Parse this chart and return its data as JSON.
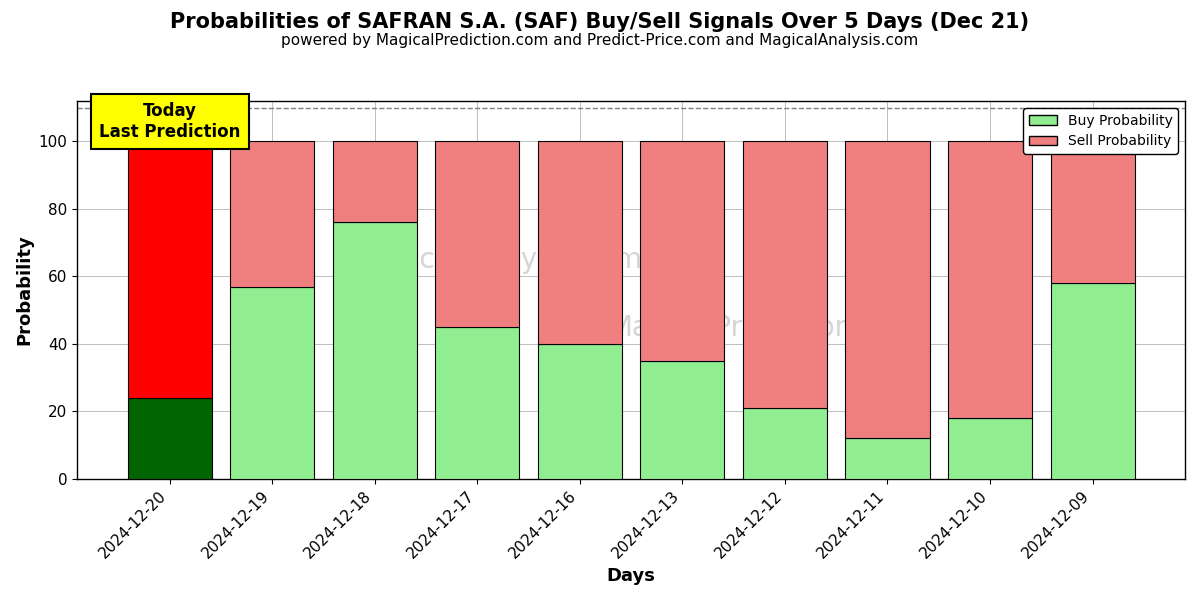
{
  "title": "Probabilities of SAFRAN S.A. (SAF) Buy/Sell Signals Over 5 Days (Dec 21)",
  "subtitle": "powered by MagicalPrediction.com and Predict-Price.com and MagicalAnalysis.com",
  "xlabel": "Days",
  "ylabel": "Probability",
  "categories": [
    "2024-12-20",
    "2024-12-19",
    "2024-12-18",
    "2024-12-17",
    "2024-12-16",
    "2024-12-13",
    "2024-12-12",
    "2024-12-11",
    "2024-12-10",
    "2024-12-09"
  ],
  "buy_values": [
    24,
    57,
    76,
    45,
    40,
    35,
    21,
    12,
    18,
    58
  ],
  "sell_values": [
    76,
    43,
    24,
    55,
    60,
    65,
    79,
    88,
    82,
    42
  ],
  "buy_color_today": "#006400",
  "sell_color_today": "#ff0000",
  "buy_color_rest": "#90ee90",
  "sell_color_rest": "#f08080",
  "bar_edge_color": "#000000",
  "ylim": [
    0,
    112
  ],
  "yticks": [
    0,
    20,
    40,
    60,
    80,
    100
  ],
  "dashed_line_y": 110,
  "legend_buy_label": "Buy Probability",
  "legend_sell_label": "Sell Probability",
  "today_label_line1": "Today",
  "today_label_line2": "Last Prediction",
  "today_box_facecolor": "#ffff00",
  "today_box_edgecolor": "#000000",
  "watermark_row1": "MagicalAnalysis.com",
  "watermark_row2": "MagicalPrediction.com",
  "watermark_color": "#d0d0d0",
  "title_fontsize": 15,
  "subtitle_fontsize": 11,
  "axis_label_fontsize": 13,
  "tick_fontsize": 11,
  "bar_width": 0.82,
  "figsize": [
    12,
    6
  ],
  "dpi": 100
}
